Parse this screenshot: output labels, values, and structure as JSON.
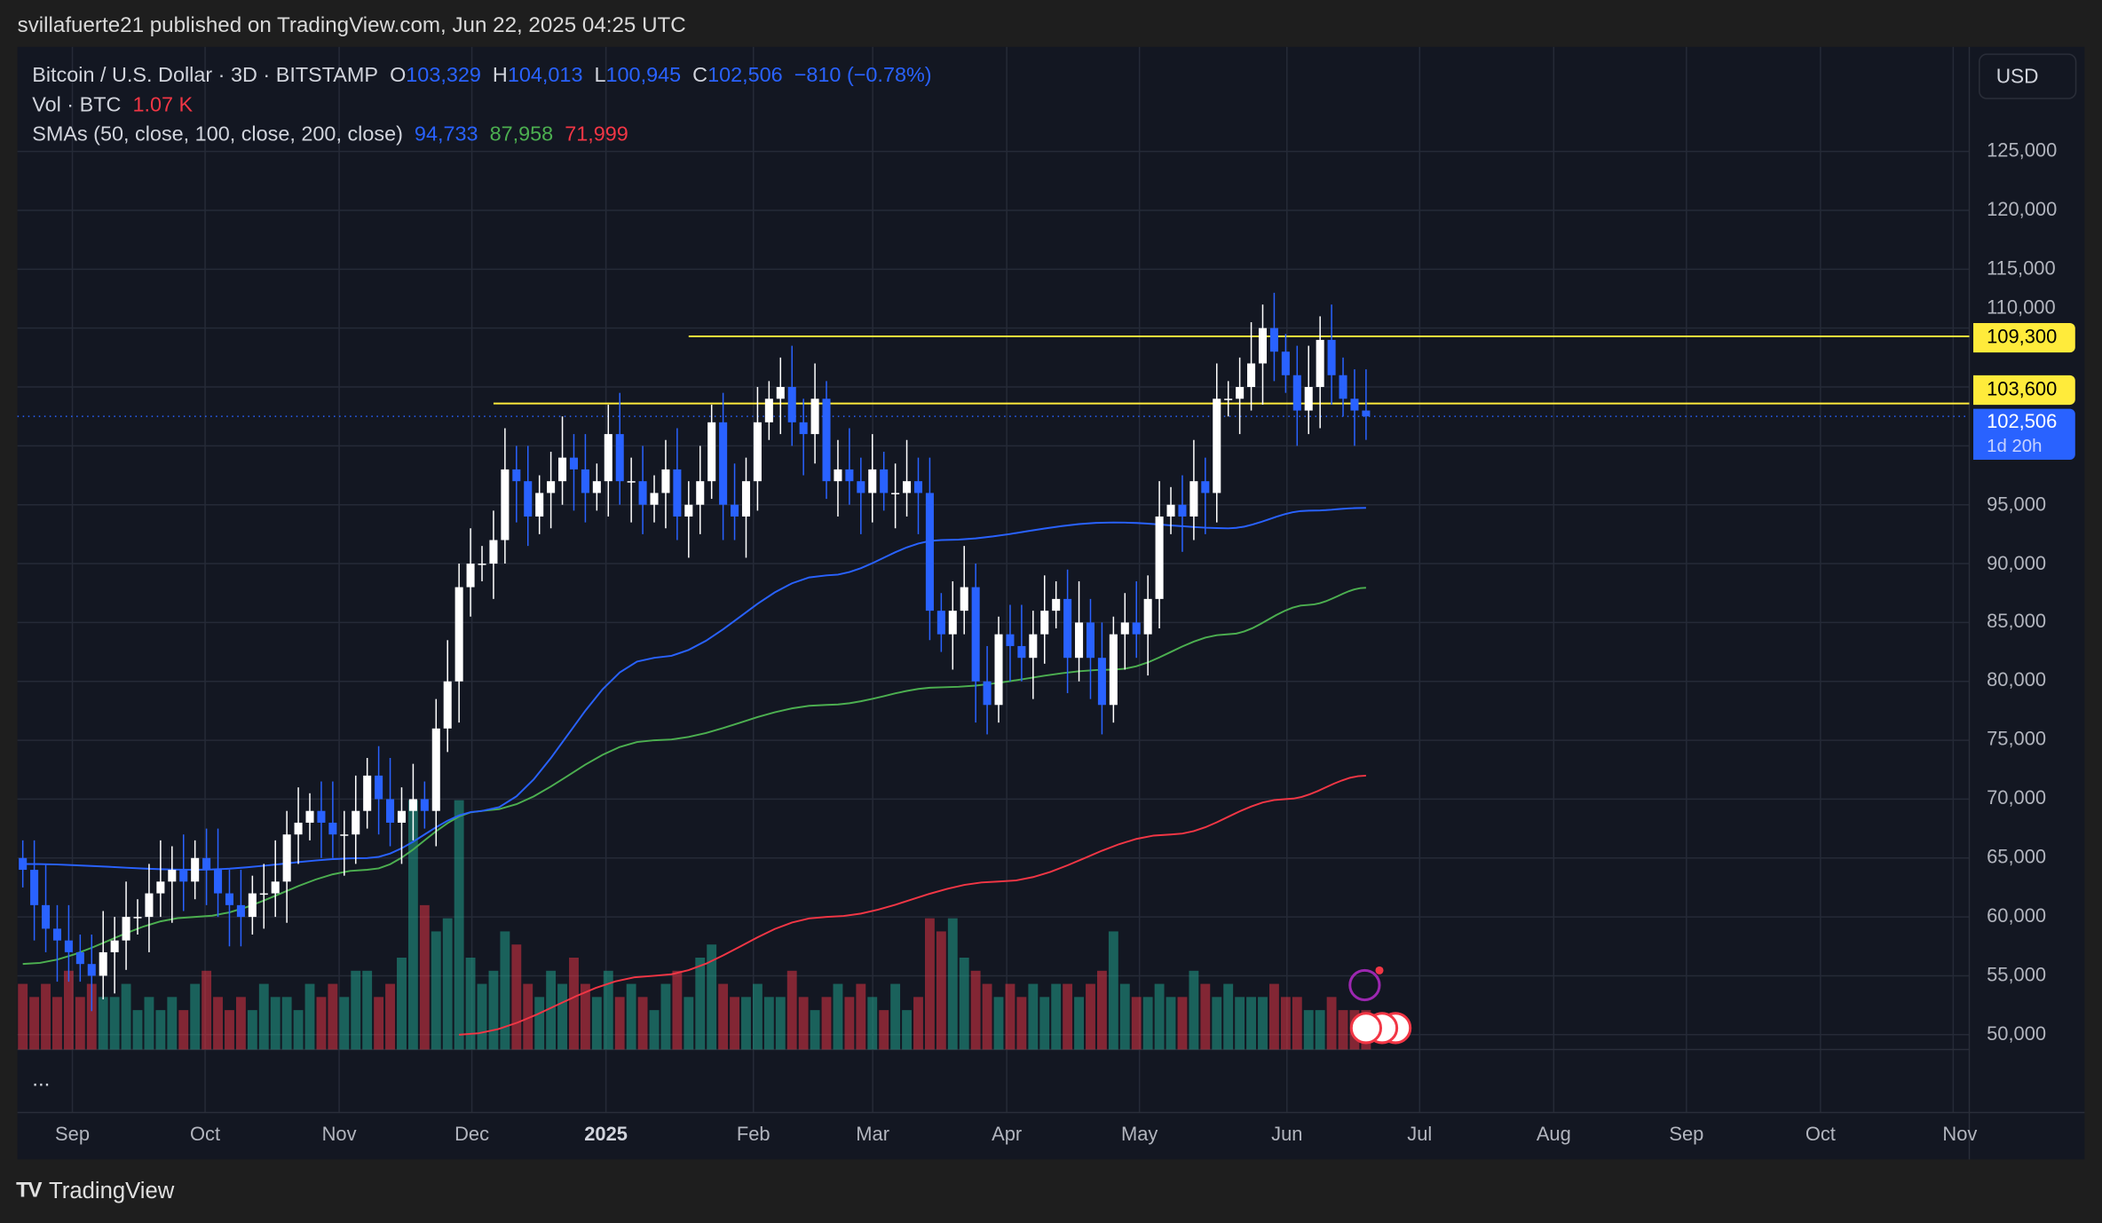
{
  "header": {
    "published": "svillafuerte21 published on TradingView.com, Jun 22, 2025 04:25 UTC"
  },
  "legend": {
    "symbol": "Bitcoin / U.S. Dollar · 3D · BITSTAMP",
    "o_label": "O",
    "open": "103,329",
    "h_label": "H",
    "high": "104,013",
    "l_label": "L",
    "low": "100,945",
    "c_label": "C",
    "close": "102,506",
    "change": "−810 (−0.78%)",
    "vol_label": "Vol · BTC",
    "vol_value": "1.07 K",
    "sma_label": "SMAs (50, close, 100, close, 200, close)",
    "sma50": "94,733",
    "sma100": "87,958",
    "sma200": "71,999"
  },
  "price_axis": {
    "currency": "USD",
    "ticks": [
      "125,000",
      "120,000",
      "115,000",
      "110,000",
      "95,000",
      "90,000",
      "85,000",
      "80,000",
      "75,000",
      "70,000",
      "65,000",
      "60,000",
      "55,000",
      "50,000"
    ],
    "level_high": "109,300",
    "level_low": "103,600",
    "last_price": "102,506",
    "countdown": "1d 20h"
  },
  "time_axis": [
    "Sep",
    "Oct",
    "Nov",
    "Dec",
    "2025",
    "Feb",
    "Mar",
    "Apr",
    "May",
    "Jun",
    "Jul",
    "Aug",
    "Sep",
    "Oct",
    "Nov"
  ],
  "pane_more": "...",
  "footer": {
    "brand": "TradingView",
    "logo_mark": "TV"
  },
  "colors": {
    "bg": "#131722",
    "up": "#ffffff",
    "down": "#2962ff",
    "vol_up": "#22ab94",
    "vol_down": "#f23645",
    "sma50": "#2962ff",
    "sma100": "#4caf50",
    "sma200": "#f23645",
    "level": "#ffeb3b"
  },
  "chart_data": {
    "type": "candlestick",
    "title": "Bitcoin / U.S. Dollar · 3D · BITSTAMP",
    "ylim": [
      47500,
      130000
    ],
    "interval": "3D",
    "closes": [
      64,
      61,
      59,
      58,
      57,
      56,
      55,
      57,
      58,
      60,
      60,
      62,
      63,
      64,
      63,
      65,
      64,
      62,
      61,
      60,
      62,
      62,
      63,
      67,
      68,
      69,
      68,
      67,
      67,
      69,
      72,
      70,
      68,
      69,
      70,
      69,
      76,
      80,
      88,
      90,
      90,
      92,
      98,
      97,
      94,
      96,
      97,
      99,
      98,
      96,
      97,
      101,
      97,
      97,
      95,
      96,
      98,
      94,
      95,
      97,
      102,
      95,
      94,
      97,
      102,
      104,
      105,
      102,
      101,
      104,
      97,
      98,
      97,
      96,
      98,
      96,
      96,
      97,
      96,
      86,
      84,
      86,
      88,
      80,
      78,
      84,
      83,
      82,
      84,
      86,
      87,
      82,
      85,
      82,
      78,
      84,
      85,
      84,
      87,
      94,
      95,
      94,
      97,
      96,
      104,
      104,
      105,
      107,
      110,
      108,
      106,
      103,
      105,
      109,
      106,
      104,
      103,
      102.506
    ],
    "first_open": 65,
    "volumes": [
      5,
      4,
      5,
      4,
      6,
      4,
      5,
      4,
      4,
      5,
      3,
      4,
      3,
      4,
      3,
      5,
      6,
      4,
      3,
      4,
      3,
      5,
      4,
      4,
      3,
      5,
      4,
      5,
      4,
      6,
      6,
      4,
      5,
      7,
      19,
      11,
      9,
      10,
      19,
      7,
      5,
      6,
      9,
      8,
      5,
      4,
      6,
      5,
      7,
      5,
      4,
      6,
      4,
      5,
      4,
      3,
      5,
      6,
      4,
      7,
      8,
      5,
      4,
      4,
      5,
      4,
      4,
      6,
      4,
      3,
      4,
      5,
      4,
      5,
      4,
      3,
      5,
      3,
      4,
      10,
      9,
      10,
      7,
      6,
      5,
      4,
      5,
      4,
      5,
      4,
      5,
      5,
      4,
      5,
      6,
      9,
      5,
      4,
      4,
      5,
      4,
      4,
      6,
      5,
      4,
      5,
      4,
      4,
      4,
      5,
      4,
      4,
      3,
      3,
      4,
      3,
      3,
      3
    ],
    "sma50": [
      [
        0,
        64500
      ],
      [
        15,
        64000
      ],
      [
        30,
        65000
      ],
      [
        40,
        69000
      ],
      [
        55,
        82000
      ],
      [
        70,
        89000
      ],
      [
        80,
        92000
      ],
      [
        95,
        93500
      ],
      [
        105,
        93000
      ],
      [
        112,
        94500
      ],
      [
        117,
        94733
      ]
    ],
    "sma100": [
      [
        0,
        56000
      ],
      [
        15,
        60000
      ],
      [
        30,
        64000
      ],
      [
        40,
        69000
      ],
      [
        55,
        75000
      ],
      [
        70,
        78000
      ],
      [
        80,
        79500
      ],
      [
        95,
        81000
      ],
      [
        105,
        84000
      ],
      [
        112,
        86500
      ],
      [
        117,
        87958
      ]
    ],
    "sma200": [
      [
        38,
        50000
      ],
      [
        55,
        55000
      ],
      [
        70,
        60000
      ],
      [
        85,
        63000
      ],
      [
        100,
        67000
      ],
      [
        110,
        70000
      ],
      [
        117,
        71999
      ]
    ],
    "levels": [
      {
        "value": 109300,
        "start_index": 58
      },
      {
        "value": 103600,
        "start_index": 41
      }
    ],
    "series": [
      {
        "name": "SMA 50",
        "last": 94733
      },
      {
        "name": "SMA 100",
        "last": 87958
      },
      {
        "name": "SMA 200",
        "last": 71999
      }
    ]
  }
}
